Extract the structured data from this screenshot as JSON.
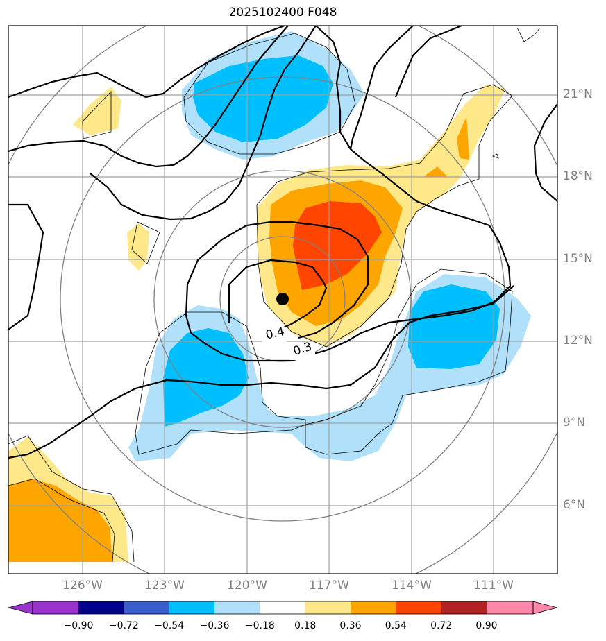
{
  "title": "2025102400 F048",
  "lat_labels": [
    "21°N",
    "18°N",
    "15°N",
    "12°N",
    "9°N",
    "6°N"
  ],
  "lon_labels": [
    "126°W",
    "123°W",
    "120°W",
    "117°W",
    "114°W",
    "111°W"
  ],
  "contour_labels": [
    "0.4",
    "0.3"
  ],
  "colorbar": {
    "ticks": [
      "−0.90",
      "−0.72",
      "−0.54",
      "−0.36",
      "−0.18",
      "0.18",
      "0.36",
      "0.54",
      "0.72",
      "0.90"
    ],
    "colors": [
      "#9933cc",
      "#00008b",
      "#3a5fcd",
      "#00bfff",
      "#b0e0fa",
      "#ffffff",
      "#ffe88a",
      "#ffa500",
      "#ff4500",
      "#b22222",
      "#ff88aa"
    ]
  },
  "storm_marker": "storm-center",
  "colors": {
    "grid": "#a0a0a0",
    "range_rings": "#808080",
    "contour": "#000000"
  }
}
